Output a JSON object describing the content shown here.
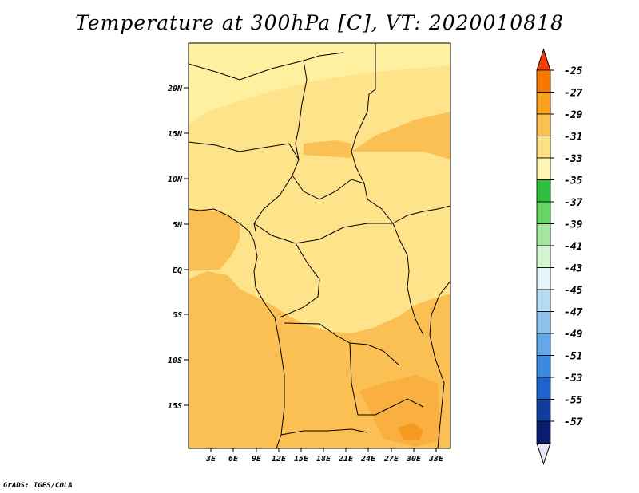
{
  "title": "Temperature at 300hPa [C], VT: 2020010818",
  "footer": "GrADS: IGES/COLA",
  "map": {
    "lat_labels": [
      "20N",
      "15N",
      "10N",
      "5N",
      "EQ",
      "5S",
      "10S",
      "15S"
    ],
    "lon_labels": [
      "3E",
      "6E",
      "9E",
      "12E",
      "15E",
      "18E",
      "21E",
      "24E",
      "27E",
      "30E",
      "33E"
    ],
    "fill_colors": {
      "light": "#fff0a0",
      "base": "#fee38a",
      "warm": "#fbc054",
      "warmer": "#f9b040",
      "hot": "#f79a20"
    }
  },
  "colorbar": {
    "labels": [
      "-25",
      "-27",
      "-29",
      "-31",
      "-33",
      "-35",
      "-37",
      "-39",
      "-41",
      "-43",
      "-45",
      "-47",
      "-49",
      "-51",
      "-53",
      "-55",
      "-57"
    ],
    "colors": [
      "#f53d00",
      "#f77800",
      "#f8a21e",
      "#fbc054",
      "#fde085",
      "#fef5b0",
      "#2fbf3c",
      "#66d565",
      "#a4e7a0",
      "#d4f5d0",
      "#e6f5fb",
      "#b5dcf4",
      "#8ec3ee",
      "#63a8e8",
      "#3a8ae0",
      "#1e63cc",
      "#0f3e9e",
      "#0a1c6c",
      "#e6e6f7"
    ]
  }
}
